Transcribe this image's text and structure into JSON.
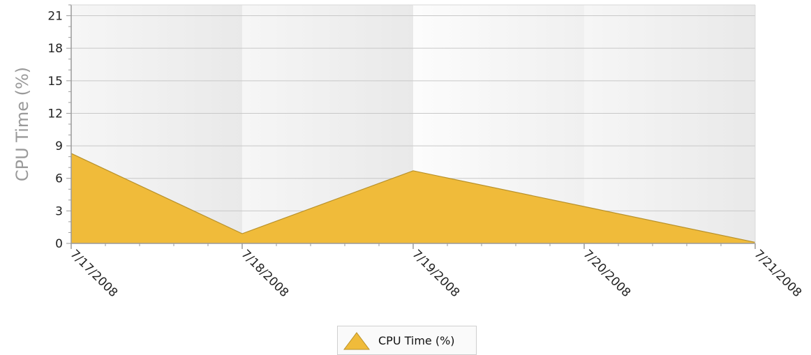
{
  "chart_data": {
    "type": "area",
    "title": "",
    "xlabel": "",
    "ylabel": "CPU Time (%)",
    "x": [
      "7/17/2008",
      "7/18/2008",
      "7/19/2008",
      "7/20/2008",
      "7/21/2008"
    ],
    "series": [
      {
        "name": "CPU Time (%)",
        "values": [
          8.3,
          0.9,
          6.7,
          3.4,
          0.1
        ]
      }
    ],
    "yticks": [
      "0",
      "3",
      "6",
      "9",
      "12",
      "15",
      "18",
      "21"
    ],
    "ylim": [
      0,
      22
    ],
    "grid": true,
    "legend": "bottom-center"
  },
  "colors": {
    "area_fill": "#f0bb3a",
    "area_stroke": "#b8912a",
    "axis": "#9a9a9a",
    "grid": "#c8c8c8"
  }
}
